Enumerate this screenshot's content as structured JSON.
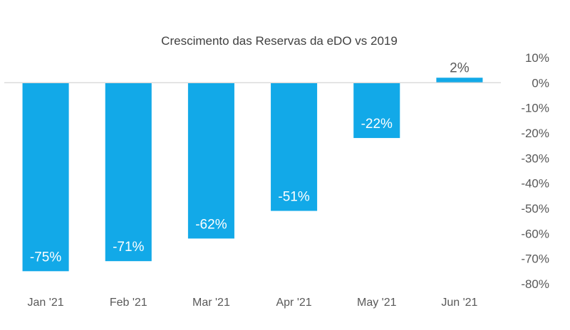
{
  "chart_data": {
    "type": "bar",
    "title": "Crescimento das Reservas da eDO vs 2019",
    "xlabel": "",
    "ylabel": "",
    "categories": [
      "Jan '21",
      "Feb '21",
      "Mar '21",
      "Apr '21",
      "May '21",
      "Jun '21"
    ],
    "values": [
      -75,
      -71,
      -62,
      -51,
      -22,
      2
    ],
    "data_labels": [
      "-75%",
      "-71%",
      "-62%",
      "-51%",
      "-22%",
      "2%"
    ],
    "ylim": [
      -80,
      10
    ],
    "yticks": [
      10,
      0,
      -10,
      -20,
      -30,
      -40,
      -50,
      -60,
      -70,
      -80
    ],
    "ytick_labels": [
      "10%",
      "0%",
      "-10%",
      "-20%",
      "-30%",
      "-40%",
      "-50%",
      "-60%",
      "-70%",
      "-80%"
    ],
    "y_axis_position": "right",
    "grid": false,
    "legend": "none",
    "colors": {
      "bar": "#12A9E8",
      "label_inside": "#ffffff",
      "label_outside": "#595959",
      "axis": "#D9D9D9",
      "text": "#595959",
      "title": "#404040"
    }
  }
}
